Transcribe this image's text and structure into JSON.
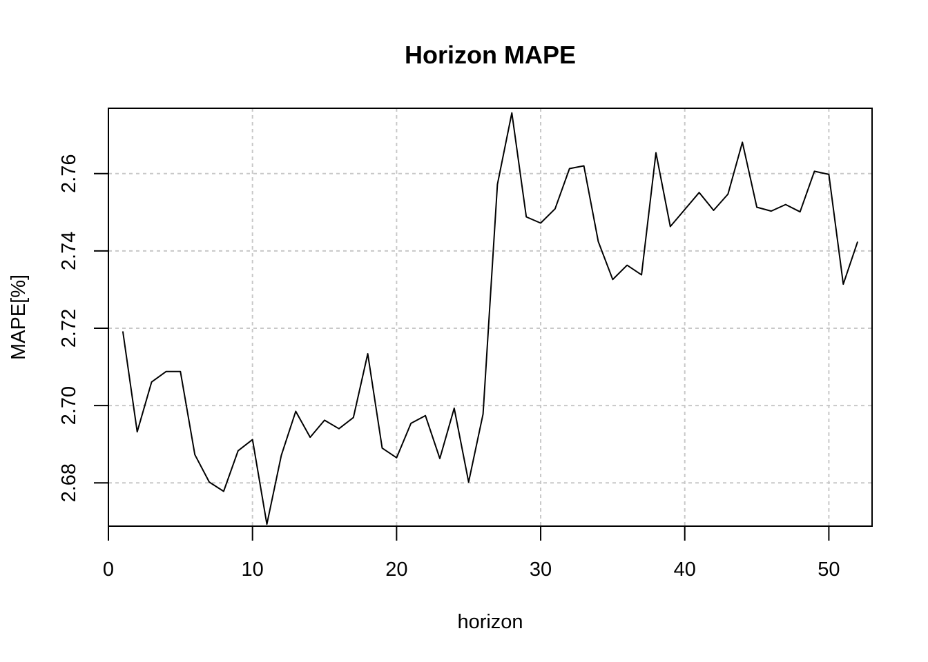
{
  "chart_data": {
    "type": "line",
    "title": "Horizon MAPE",
    "xlabel": "horizon",
    "ylabel": "MAPE[%]",
    "xlim": [
      0,
      53
    ],
    "ylim": [
      2.6688,
      2.7769
    ],
    "grid": true,
    "xticks": [
      0,
      10,
      20,
      30,
      40,
      50
    ],
    "yticks": [
      2.68,
      2.7,
      2.72,
      2.74,
      2.76
    ],
    "xtick_labels": [
      "0",
      "10",
      "20",
      "30",
      "40",
      "50"
    ],
    "ytick_labels": [
      "2.68",
      "2.70",
      "2.72",
      "2.74",
      "2.76"
    ],
    "series": [
      {
        "name": "MAPE",
        "x": [
          1,
          2,
          3,
          4,
          5,
          6,
          7,
          8,
          9,
          10,
          11,
          12,
          13,
          14,
          15,
          16,
          17,
          18,
          19,
          20,
          21,
          22,
          23,
          24,
          25,
          26,
          27,
          28,
          29,
          30,
          31,
          32,
          33,
          34,
          35,
          36,
          37,
          38,
          39,
          40,
          41,
          42,
          43,
          44,
          45,
          46,
          47,
          48,
          49,
          50,
          51,
          52
        ],
        "y": [
          2.7192,
          2.6932,
          2.7061,
          2.7088,
          2.7088,
          2.6873,
          2.6802,
          2.6778,
          2.6883,
          2.6912,
          2.6693,
          2.6871,
          2.6985,
          2.6918,
          2.6962,
          2.694,
          2.6969,
          2.7134,
          2.689,
          2.6865,
          2.6954,
          2.6974,
          2.6863,
          2.6993,
          2.6802,
          2.6978,
          2.7572,
          2.7757,
          2.7488,
          2.7472,
          2.7509,
          2.7613,
          2.762,
          2.7424,
          2.7326,
          2.7363,
          2.7338,
          2.7654,
          2.7463,
          2.7507,
          2.7551,
          2.7505,
          2.7547,
          2.7681,
          2.7513,
          2.7503,
          2.752,
          2.7501,
          2.7606,
          2.7598,
          2.7314,
          2.7424
        ]
      }
    ]
  }
}
